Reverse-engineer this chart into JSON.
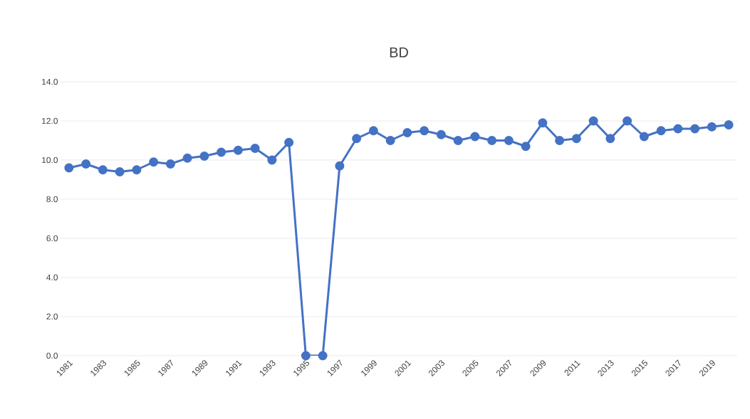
{
  "chart_data": {
    "type": "line",
    "title": "BD",
    "categories": [
      "1981",
      null,
      "1983",
      null,
      "1985",
      null,
      "1987",
      null,
      "1989",
      null,
      "1991",
      null,
      "1993",
      null,
      "1995",
      null,
      "1997",
      null,
      "1999",
      null,
      "2001",
      null,
      "2003",
      null,
      "2005",
      null,
      "2007",
      null,
      "2009",
      null,
      "2011",
      null,
      "2013",
      null,
      "2015",
      null,
      "2017",
      null,
      "2019",
      null
    ],
    "series": [
      {
        "color": "#4472c4",
        "values": [
          9.6,
          9.8,
          9.5,
          9.4,
          9.5,
          9.9,
          9.8,
          10.1,
          10.2,
          10.4,
          10.5,
          10.6,
          10.0,
          10.9,
          0,
          0,
          9.7,
          11.1,
          11.5,
          11.0,
          11.4,
          11.5,
          11.3,
          11.0,
          11.2,
          11.0,
          11.0,
          10.7,
          11.9,
          11.0,
          11.1,
          12.0,
          11.1,
          12.0,
          11.2,
          11.5,
          11.6,
          11.6,
          11.7,
          11.8
        ]
      }
    ],
    "ylim": [
      0,
      14
    ],
    "yticks": [
      {
        "value": 0,
        "label": "0.0"
      },
      {
        "value": 2,
        "label": "2.0"
      },
      {
        "value": 4,
        "label": "4.0"
      },
      {
        "value": 6,
        "label": "6.0"
      },
      {
        "value": 8,
        "label": "8.0"
      },
      {
        "value": 10,
        "label": "10.0"
      },
      {
        "value": 12,
        "label": "12.0"
      },
      {
        "value": 14,
        "label": "14.0"
      }
    ],
    "grid": "y",
    "marker": "circle",
    "line_style": "solid",
    "legend": false
  }
}
